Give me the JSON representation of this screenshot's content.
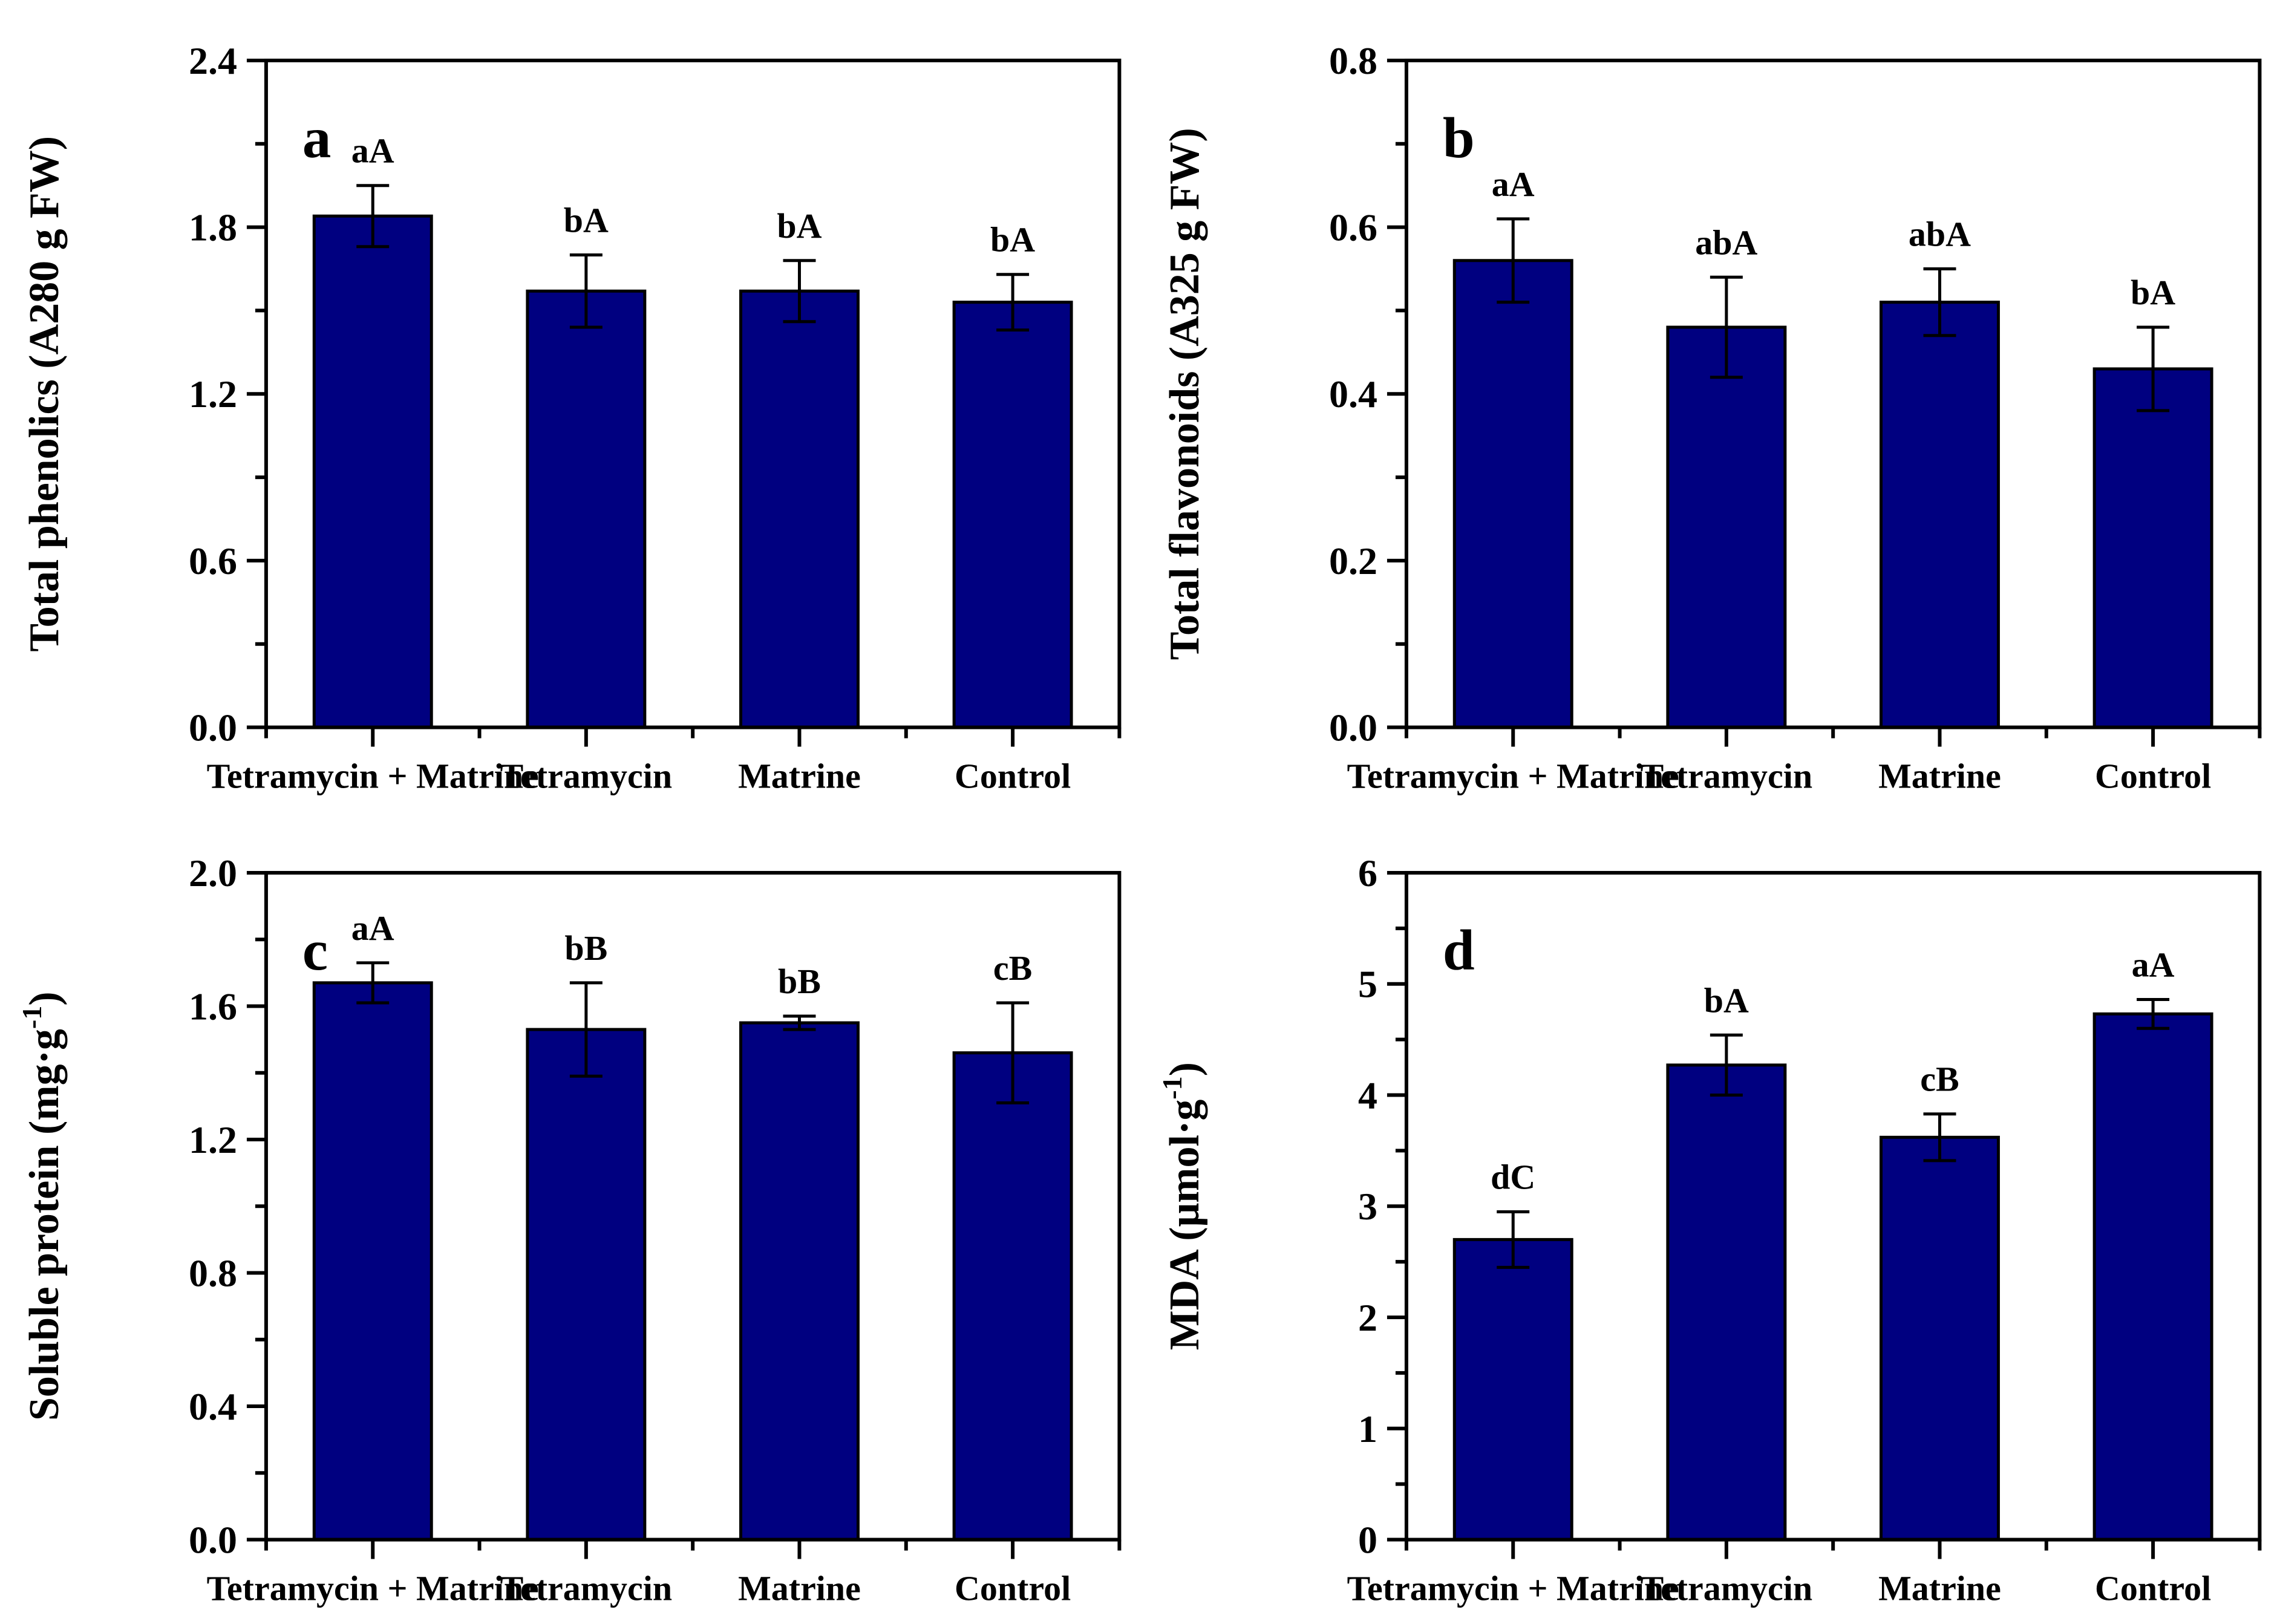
{
  "figure": {
    "background": "#ffffff",
    "bar_fill": "#000080",
    "bar_stroke": "#000000",
    "axis_color": "#000000",
    "panel_count": 4
  },
  "chart_data": [
    {
      "type": "bar",
      "panel_letter": "a",
      "title": "",
      "xlabel": "",
      "ylabel_pre": "Total phenolics (A280 g FW)",
      "ylabel_sup": "",
      "ylabel_post": "",
      "ylim": [
        0,
        2.4
      ],
      "grid": false,
      "legend_position": "none",
      "categories": [
        "Tetramycin + Matrine",
        "Tetramycin",
        "Matrine",
        "Control"
      ],
      "values": [
        1.84,
        1.57,
        1.57,
        1.53
      ],
      "errors": [
        0.11,
        0.13,
        0.11,
        0.1
      ],
      "sig_labels": [
        "aA",
        "bA",
        "bA",
        "bA"
      ],
      "ytick_labels": [
        "0.0",
        "0.6",
        "1.2",
        "1.8",
        "2.4"
      ],
      "ytick_values": [
        0,
        0.6,
        1.2,
        1.8,
        2.4
      ],
      "ytick_minor": [
        0.3,
        0.9,
        1.5,
        2.1
      ]
    },
    {
      "type": "bar",
      "panel_letter": "b",
      "title": "",
      "xlabel": "",
      "ylabel_pre": "Total flavonoids (A325 g FW)",
      "ylabel_sup": "",
      "ylabel_post": "",
      "ylim": [
        0,
        0.8
      ],
      "grid": false,
      "legend_position": "none",
      "categories": [
        "Tetramycin + Matrine",
        "Tetramycin",
        "Matrine",
        "Control"
      ],
      "values": [
        0.56,
        0.48,
        0.51,
        0.43
      ],
      "errors": [
        0.05,
        0.06,
        0.04,
        0.05
      ],
      "sig_labels": [
        "aA",
        "abA",
        "abA",
        "bA"
      ],
      "ytick_labels": [
        "0.0",
        "0.2",
        "0.4",
        "0.6",
        "0.8"
      ],
      "ytick_values": [
        0,
        0.2,
        0.4,
        0.6,
        0.8
      ],
      "ytick_minor": [
        0.1,
        0.3,
        0.5,
        0.7
      ]
    },
    {
      "type": "bar",
      "panel_letter": "c",
      "title": "",
      "xlabel": "",
      "ylabel_pre": "Soluble protein (mg·g",
      "ylabel_sup": "-1",
      "ylabel_post": ")",
      "ylim": [
        0,
        2.0
      ],
      "grid": false,
      "legend_position": "none",
      "categories": [
        "Tetramycin + Matrine",
        "Tetramycin",
        "Matrine",
        "Control"
      ],
      "values": [
        1.67,
        1.53,
        1.55,
        1.46
      ],
      "errors": [
        0.06,
        0.14,
        0.02,
        0.15
      ],
      "sig_labels": [
        "aA",
        "bB",
        "bB",
        "cB"
      ],
      "ytick_labels": [
        "0.0",
        "0.4",
        "0.8",
        "1.2",
        "1.6",
        "2.0"
      ],
      "ytick_values": [
        0,
        0.4,
        0.8,
        1.2,
        1.6,
        2.0
      ],
      "ytick_minor": [
        0.2,
        0.6,
        1.0,
        1.4,
        1.8
      ]
    },
    {
      "type": "bar",
      "panel_letter": "d",
      "title": "",
      "xlabel": "",
      "ylabel_pre": "MDA (μmol·g",
      "ylabel_sup": "-1",
      "ylabel_post": ")",
      "ylim": [
        0,
        6
      ],
      "grid": false,
      "legend_position": "none",
      "categories": [
        "Tetramycin + Matrine",
        "Tetramycin",
        "Matrine",
        "Control"
      ],
      "values": [
        2.7,
        4.27,
        3.62,
        4.73
      ],
      "errors": [
        0.25,
        0.27,
        0.21,
        0.13
      ],
      "sig_labels": [
        "dC",
        "bA",
        "cB",
        "aA"
      ],
      "ytick_labels": [
        "0",
        "1",
        "2",
        "3",
        "4",
        "5",
        "6"
      ],
      "ytick_values": [
        0,
        1,
        2,
        3,
        4,
        5,
        6
      ],
      "ytick_minor": [
        0.5,
        1.5,
        2.5,
        3.5,
        4.5,
        5.5
      ]
    }
  ]
}
